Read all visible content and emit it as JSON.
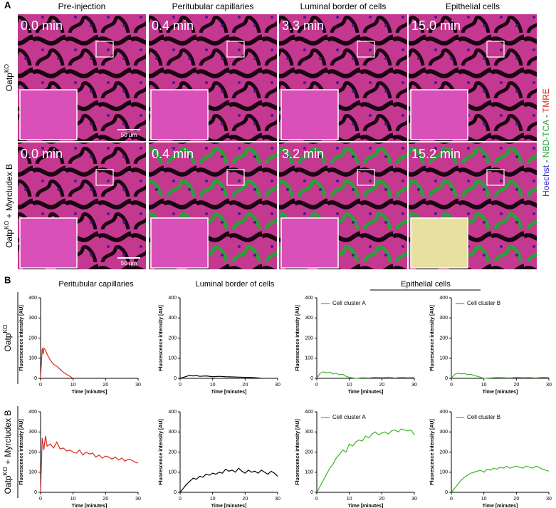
{
  "figure": {
    "panel_a": {
      "letter": "A",
      "columns": [
        "Pre-injection",
        "Peritubular capillaries",
        "Luminal border of cells",
        "Epithelial cells"
      ],
      "rows": [
        {
          "label": {
            "base": "Oatp",
            "sup": "KO"
          },
          "times": [
            "0.0 min",
            "0.4 min",
            "3.3 min",
            "15.0 min"
          ],
          "scale": "50 µm"
        },
        {
          "label": {
            "base": "Oatp",
            "sup": "KO",
            "suffix": " + Myrcludex B"
          },
          "times": [
            "0.0 min",
            "0.4 min",
            "3.2 min",
            "15.2 min"
          ],
          "scale": "50 µm"
        }
      ],
      "stain": {
        "hoechst": "Hoechst",
        "sep1": " - ",
        "nbd": "NBD-TCA",
        "sep2": " - ",
        "tmre": "TMRE"
      }
    },
    "panel_b": {
      "letter": "B",
      "columns": [
        "Peritubular capillaries",
        "Luminal border of cells",
        "Epithelial cells"
      ],
      "rows": [
        {
          "base": "Oatp",
          "sup": "KO"
        },
        {
          "base": "Oatp",
          "sup": "KO",
          "suffix": " + Myrcludex B"
        }
      ]
    }
  },
  "chart_data": [
    {
      "type": "line",
      "ylabel": "Fluorescence intensity [AU]",
      "xlabel": "Time [minutes]",
      "xlim": [
        0,
        30
      ],
      "ylim": [
        0,
        400
      ],
      "xticks": [
        0,
        10,
        20,
        30
      ],
      "yticks": [
        0,
        100,
        200,
        300,
        400
      ],
      "series": [
        {
          "color": "#d42a20",
          "x": [
            0,
            0.5,
            0.8,
            1,
            1.5,
            2,
            3,
            4,
            5,
            6,
            7,
            8,
            9,
            10
          ],
          "values": [
            0,
            150,
            120,
            150,
            140,
            120,
            90,
            70,
            60,
            45,
            30,
            20,
            10,
            0
          ]
        }
      ]
    },
    {
      "type": "line",
      "ylabel": "Fluorescence intensity [AU]",
      "xlabel": "Time [minutes]",
      "xlim": [
        0,
        30
      ],
      "ylim": [
        0,
        400
      ],
      "xticks": [
        0,
        10,
        20,
        30
      ],
      "yticks": [
        0,
        100,
        200,
        300,
        400
      ],
      "series": [
        {
          "color": "#000000",
          "x": [
            0,
            1,
            2,
            3,
            4,
            5,
            6,
            8,
            10,
            12,
            14,
            16,
            18,
            20,
            22,
            24,
            25
          ],
          "values": [
            0,
            5,
            10,
            15,
            12,
            14,
            10,
            12,
            8,
            10,
            8,
            7,
            6,
            5,
            4,
            2,
            0
          ]
        }
      ]
    },
    {
      "type": "line",
      "ylabel": "Fluorescence intensity [AU]",
      "xlabel": "Time [minutes]",
      "xlim": [
        0,
        30
      ],
      "ylim": [
        0,
        400
      ],
      "xticks": [
        0,
        10,
        20,
        30
      ],
      "yticks": [
        0,
        100,
        200,
        300,
        400
      ],
      "series": [
        {
          "name": "Cell cluster A",
          "color": "#3cb521",
          "x": [
            0,
            1,
            2,
            3,
            4,
            5,
            6,
            7,
            8,
            9,
            10,
            12,
            14,
            16,
            18,
            20,
            22,
            24,
            26,
            28,
            30
          ],
          "values": [
            0,
            25,
            32,
            28,
            30,
            22,
            25,
            18,
            20,
            10,
            5,
            0,
            3,
            2,
            5,
            3,
            6,
            2,
            5,
            3,
            4
          ]
        }
      ]
    },
    {
      "type": "line",
      "ylabel": "Fluorescence intensity [AU]",
      "xlabel": "Time [minutes]",
      "xlim": [
        0,
        30
      ],
      "ylim": [
        0,
        400
      ],
      "xticks": [
        0,
        10,
        20,
        30
      ],
      "yticks": [
        0,
        100,
        200,
        300,
        400
      ],
      "series": [
        {
          "name": "Cell cluster B",
          "color": "#3cb521",
          "x": [
            0,
            1,
            2,
            3,
            4,
            5,
            6,
            7,
            8,
            9,
            10,
            12,
            14,
            16,
            18,
            20,
            22,
            24,
            26,
            28,
            30
          ],
          "values": [
            0,
            20,
            25,
            22,
            24,
            18,
            20,
            15,
            10,
            5,
            0,
            2,
            4,
            3,
            2,
            5,
            3,
            4,
            2,
            5,
            3
          ]
        }
      ]
    },
    {
      "type": "line",
      "ylabel": "Fluorescence intensity [AU]",
      "xlabel": "Time [minutes]",
      "xlim": [
        0,
        30
      ],
      "ylim": [
        0,
        400
      ],
      "xticks": [
        0,
        10,
        20,
        30
      ],
      "yticks": [
        0,
        100,
        200,
        300,
        400
      ],
      "series": [
        {
          "color": "#d42a20",
          "x": [
            0,
            0.5,
            1,
            1.5,
            2,
            3,
            4,
            5,
            6,
            7,
            8,
            9,
            10,
            11,
            12,
            13,
            14,
            15,
            16,
            17,
            18,
            19,
            20,
            21,
            22,
            23,
            24,
            25,
            26,
            27,
            28,
            29,
            30
          ],
          "values": [
            0,
            270,
            210,
            280,
            230,
            240,
            220,
            250,
            215,
            220,
            205,
            210,
            200,
            195,
            210,
            185,
            200,
            190,
            195,
            175,
            185,
            170,
            180,
            175,
            165,
            175,
            160,
            170,
            155,
            165,
            160,
            150,
            145
          ]
        }
      ]
    },
    {
      "type": "line",
      "ylabel": "Fluorescence intensity [AU]",
      "xlabel": "Time [minutes]",
      "xlim": [
        0,
        30
      ],
      "ylim": [
        0,
        400
      ],
      "xticks": [
        0,
        10,
        20,
        30
      ],
      "yticks": [
        0,
        100,
        200,
        300,
        400
      ],
      "series": [
        {
          "color": "#000000",
          "x": [
            0,
            1,
            2,
            3,
            4,
            5,
            6,
            7,
            8,
            9,
            10,
            11,
            12,
            13,
            14,
            15,
            16,
            17,
            18,
            19,
            20,
            21,
            22,
            23,
            24,
            25,
            26,
            27,
            28,
            29,
            30
          ],
          "values": [
            0,
            20,
            40,
            55,
            70,
            65,
            80,
            75,
            90,
            85,
            95,
            90,
            100,
            95,
            115,
            105,
            110,
            100,
            120,
            105,
            95,
            110,
            100,
            105,
            95,
            110,
            100,
            90,
            105,
            95,
            80
          ]
        }
      ]
    },
    {
      "type": "line",
      "ylabel": "Fluorescence intensity [AU]",
      "xlabel": "Time [minutes]",
      "xlim": [
        0,
        30
      ],
      "ylim": [
        0,
        400
      ],
      "xticks": [
        0,
        10,
        20,
        30
      ],
      "yticks": [
        0,
        100,
        200,
        300,
        400
      ],
      "series": [
        {
          "name": "Cell cluster A",
          "color": "#3cb521",
          "x": [
            0,
            1,
            2,
            3,
            4,
            5,
            6,
            7,
            8,
            9,
            10,
            11,
            12,
            13,
            14,
            15,
            16,
            17,
            18,
            19,
            20,
            21,
            22,
            23,
            24,
            25,
            26,
            27,
            28,
            29,
            30
          ],
          "values": [
            0,
            30,
            60,
            90,
            120,
            140,
            170,
            190,
            210,
            200,
            240,
            230,
            250,
            260,
            255,
            280,
            270,
            290,
            300,
            285,
            295,
            300,
            290,
            305,
            310,
            300,
            315,
            310,
            305,
            310,
            285
          ]
        }
      ]
    },
    {
      "type": "line",
      "ylabel": "Fluorescence intensity [AU]",
      "xlabel": "Time [minutes]",
      "xlim": [
        0,
        30
      ],
      "ylim": [
        0,
        400
      ],
      "xticks": [
        0,
        10,
        20,
        30
      ],
      "yticks": [
        0,
        100,
        200,
        300,
        400
      ],
      "series": [
        {
          "name": "Cell cluster B",
          "color": "#3cb521",
          "x": [
            0,
            1,
            2,
            3,
            4,
            5,
            6,
            7,
            8,
            9,
            10,
            11,
            12,
            13,
            14,
            15,
            16,
            17,
            18,
            19,
            20,
            21,
            22,
            23,
            24,
            25,
            26,
            27,
            28,
            29,
            30
          ],
          "values": [
            0,
            20,
            40,
            60,
            75,
            85,
            95,
            100,
            105,
            110,
            100,
            115,
            110,
            120,
            115,
            125,
            120,
            130,
            120,
            125,
            130,
            125,
            120,
            130,
            125,
            120,
            130,
            125,
            115,
            110,
            105
          ]
        }
      ]
    }
  ]
}
